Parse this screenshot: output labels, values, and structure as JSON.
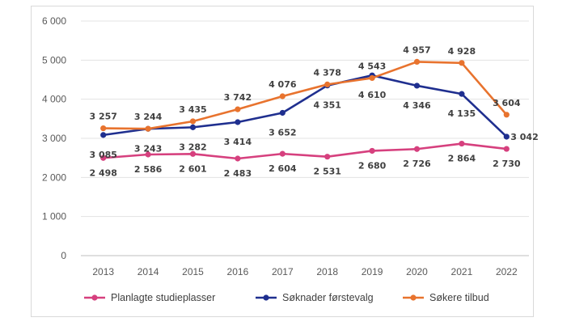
{
  "chart_data": {
    "type": "line",
    "title": "",
    "xlabel": "",
    "ylabel": "",
    "categories": [
      "2013",
      "2014",
      "2015",
      "2016",
      "2017",
      "2018",
      "2019",
      "2020",
      "2021",
      "2022"
    ],
    "ylim": [
      0,
      6000
    ],
    "yticks": [
      0,
      1000,
      2000,
      3000,
      4000,
      5000,
      6000
    ],
    "ytick_labels": [
      "0",
      "1 000",
      "2 000",
      "3 000",
      "4 000",
      "5 000",
      "6 000"
    ],
    "grid": "horizontal",
    "legend": "bottom",
    "series": [
      {
        "name": "Planlagte studieplasser",
        "color": "#d6407e",
        "values": [
          2498,
          2586,
          2601,
          2483,
          2604,
          2531,
          2680,
          2726,
          2864,
          2730
        ],
        "labels": [
          "2 498",
          "2 586",
          "2 601",
          "2 483",
          "2 604",
          "2 531",
          "2 680",
          "2 726",
          "2 864",
          "2 730"
        ]
      },
      {
        "name": "Søknader førstevalg",
        "color": "#1f2f8f",
        "values": [
          3085,
          3243,
          3282,
          3414,
          3652,
          4351,
          4610,
          4346,
          4135,
          3042
        ],
        "labels": [
          "3 085",
          "3 243",
          "3 282",
          "3 414",
          "3 652",
          "4 351",
          "4 610",
          "4 346",
          "4 135",
          "3 042"
        ]
      },
      {
        "name": "Søkere tilbud",
        "color": "#e8732e",
        "values": [
          3257,
          3244,
          3435,
          3742,
          4076,
          4378,
          4543,
          4957,
          4928,
          3604
        ],
        "labels": [
          "3 257",
          "3 244",
          "3 435",
          "3 742",
          "4 076",
          "4 378",
          "4 543",
          "4 957",
          "4 928",
          "3 604"
        ]
      }
    ]
  }
}
